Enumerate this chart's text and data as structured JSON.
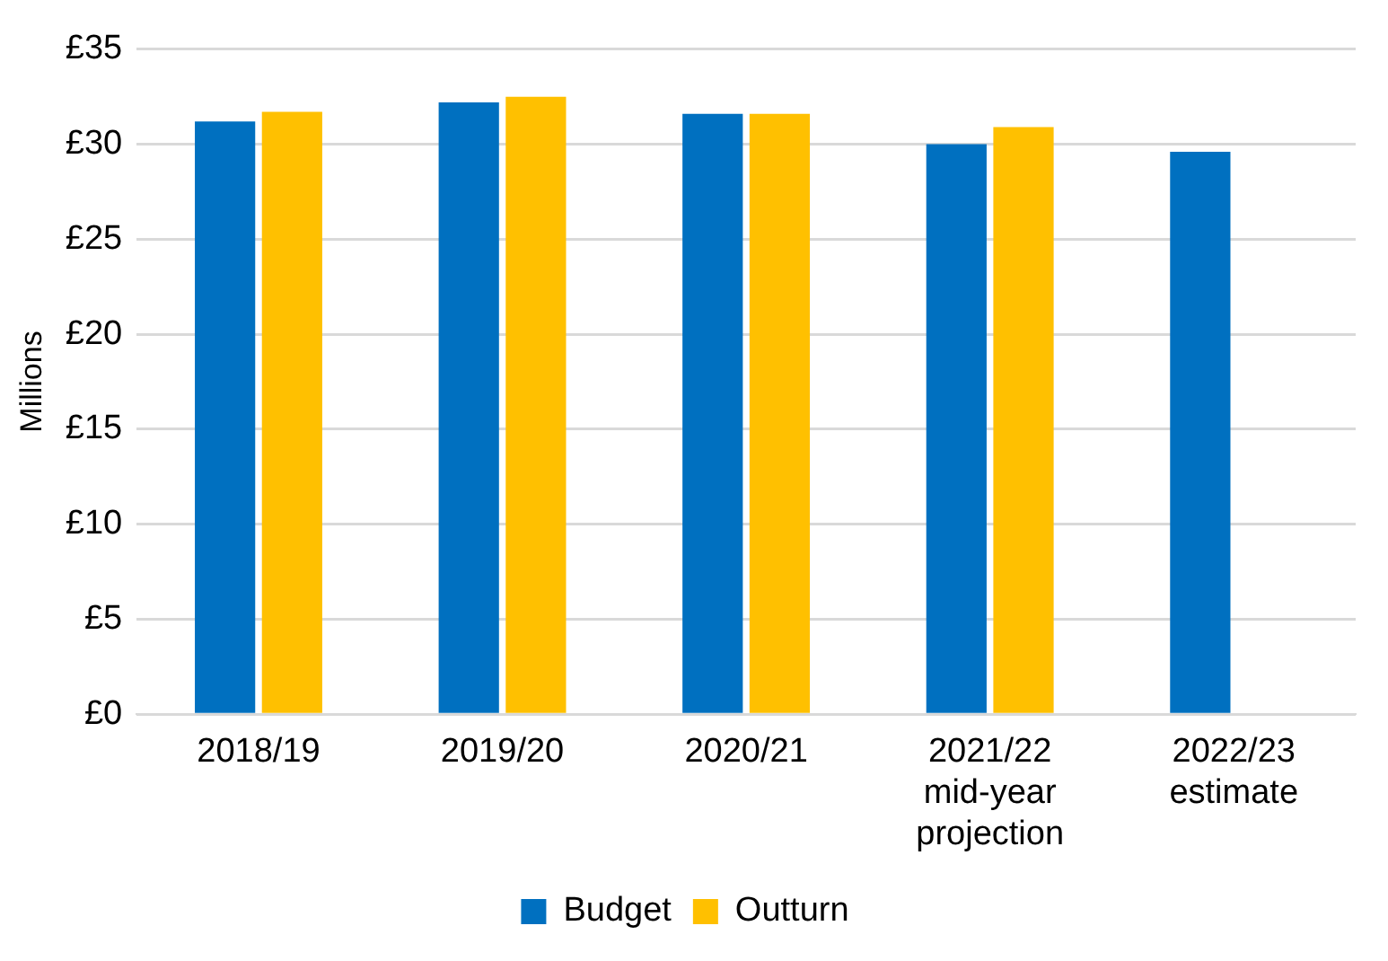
{
  "chart_data": {
    "type": "bar",
    "ylabel": "Millions",
    "categories": [
      "2018/19",
      "2019/20",
      "2020/21",
      "2021/22 mid-year projection",
      "2022/23 estimate"
    ],
    "series": [
      {
        "name": "Budget",
        "color": "#0070c0",
        "values": [
          31.2,
          32.2,
          31.6,
          30.0,
          29.6
        ]
      },
      {
        "name": "Outturn",
        "color": "#ffc000",
        "values": [
          31.7,
          32.5,
          31.6,
          30.9,
          null
        ]
      }
    ],
    "ylim": [
      0,
      35
    ],
    "yticks": [
      {
        "value": 0,
        "label": "£0"
      },
      {
        "value": 5,
        "label": "£5"
      },
      {
        "value": 10,
        "label": "£10"
      },
      {
        "value": 15,
        "label": "£15"
      },
      {
        "value": 20,
        "label": "£20"
      },
      {
        "value": 25,
        "label": "£25"
      },
      {
        "value": 30,
        "label": "£30"
      },
      {
        "value": 35,
        "label": "£35"
      }
    ],
    "grid": "y",
    "legend": "bottom"
  }
}
